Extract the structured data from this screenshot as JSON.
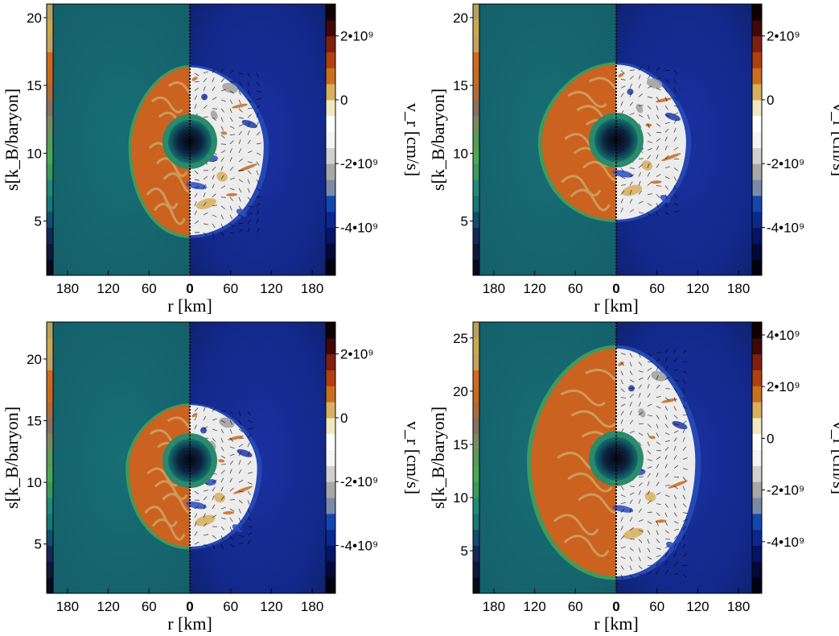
{
  "figure": {
    "panels": [
      {
        "panel_id": "tl",
        "entropy_axis_label": "s[k_B/baryon]",
        "velocity_axis_label": "v_r [cm/s]",
        "r_axis_label": "r [km]",
        "entropy_ticks": [
          "20",
          "15",
          "10",
          "5"
        ],
        "entropy_range": [
          1,
          21
        ],
        "velocity_ticks": [
          "2•10⁹",
          "0",
          "-2•10⁹",
          "-4•10⁹"
        ],
        "velocity_range": [
          -5500000000.0,
          3000000000.0
        ],
        "r_ticks_left": [
          "180",
          "120",
          "60"
        ],
        "r_tick_center": "0",
        "r_ticks_right": [
          "60",
          "120",
          "180"
        ],
        "shock": {
          "n": -0.55,
          "s": 0.74,
          "ew": 0.44,
          "ee": 0.56
        }
      },
      {
        "panel_id": "tr",
        "entropy_axis_label": "s[k_B/baryon]",
        "velocity_axis_label": "v_r [cm/s]",
        "r_axis_label": "r [km]",
        "entropy_ticks": [
          "20",
          "15",
          "10",
          "5"
        ],
        "entropy_range": [
          1,
          21
        ],
        "velocity_ticks": [
          "2•10⁹",
          "0",
          "-2•10⁹",
          "-4•10⁹"
        ],
        "velocity_range": [
          -5500000000.0,
          3000000000.0
        ],
        "r_ticks_left": [
          "180",
          "120",
          "60"
        ],
        "r_tick_center": "0",
        "r_ticks_right": [
          "60",
          "120",
          "180"
        ],
        "shock": {
          "n": -0.57,
          "s": 0.62,
          "ew": 0.56,
          "ee": 0.53
        }
      },
      {
        "panel_id": "bl",
        "entropy_axis_label": "s[k_B/baryon]",
        "velocity_axis_label": "v_r [cm/s]",
        "r_axis_label": "r [km]",
        "entropy_ticks": [
          "20",
          "15",
          "10",
          "5"
        ],
        "entropy_range": [
          1,
          23
        ],
        "velocity_ticks": [
          "2•10⁹",
          "0",
          "-2•10⁹",
          "-4•10⁹"
        ],
        "velocity_range": [
          -5500000000.0,
          3000000000.0
        ],
        "r_ticks_left": [
          "180",
          "120",
          "60"
        ],
        "r_tick_center": "0",
        "r_ticks_right": [
          "60",
          "120",
          "180"
        ],
        "shock": {
          "n": -0.4,
          "s": 0.69,
          "ew": 0.46,
          "ee": 0.51
        }
      },
      {
        "panel_id": "br",
        "entropy_axis_label": "s[k_B/baryon]",
        "velocity_axis_label": "v_r [cm/s]",
        "r_axis_label": "r [km]",
        "entropy_ticks": [
          "25",
          "20",
          "15",
          "10",
          "5"
        ],
        "entropy_range": [
          1,
          26.5
        ],
        "velocity_ticks": [
          "4•10⁹",
          "2•10⁹",
          "0",
          "-2•10⁹",
          "-4•10⁹"
        ],
        "velocity_range": [
          -6000000000.0,
          4500000000.0
        ],
        "r_ticks_left": [
          "180",
          "120",
          "60"
        ],
        "r_tick_center": "0",
        "r_ticks_right": [
          "60",
          "120",
          "180"
        ],
        "shock": {
          "n": -0.83,
          "s": 0.92,
          "ew": 0.64,
          "ee": 0.6
        }
      }
    ]
  }
}
